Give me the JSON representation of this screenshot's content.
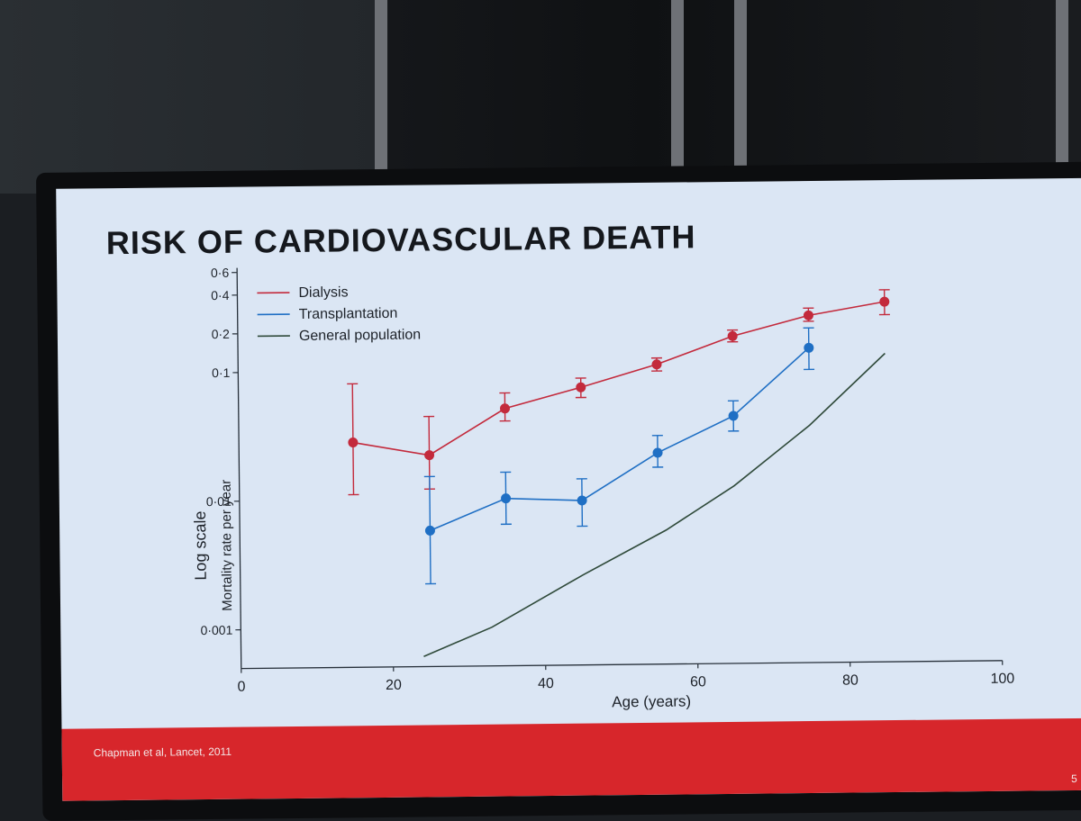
{
  "slide": {
    "title": "RISK OF CARDIOVASCULAR DEATH",
    "citation": "Chapman et al, Lancet, 2011",
    "page_number": "5"
  },
  "colors": {
    "dialysis": "#c32a3c",
    "transplantation": "#1f6fc4",
    "general_population": "#2f4a3a",
    "slide_bg": "#dbe6f4",
    "footer_bar": "#d7262b"
  },
  "chart_data": {
    "type": "line",
    "title": "",
    "ylabel_main": "Log scale",
    "ylabel_sub": "Mortality rate per year",
    "xlabel": "Age (years)",
    "xlim": [
      0,
      100
    ],
    "ylim": [
      0.0005,
      0.6
    ],
    "y_scale": "log",
    "x_ticks": [
      {
        "value": 0,
        "label": "0"
      },
      {
        "value": 20,
        "label": "20"
      },
      {
        "value": 40,
        "label": "40"
      },
      {
        "value": 60,
        "label": "60"
      },
      {
        "value": 80,
        "label": "80"
      },
      {
        "value": 100,
        "label": "100"
      }
    ],
    "y_ticks": [
      {
        "value": 0.001,
        "label": "0·001"
      },
      {
        "value": 0.01,
        "label": "0·01"
      },
      {
        "value": 0.1,
        "label": "0·1"
      },
      {
        "value": 0.2,
        "label": "0·2"
      },
      {
        "value": 0.4,
        "label": "0·4"
      },
      {
        "value": 0.6,
        "label": "0·6"
      }
    ],
    "legend_position": "top-left",
    "series": [
      {
        "name": "Dialysis",
        "color": "#c32a3c",
        "markers": true,
        "points": [
          {
            "x": 15,
            "y": 0.028,
            "low": 0.011,
            "high": 0.08
          },
          {
            "x": 25,
            "y": 0.022,
            "low": 0.012,
            "high": 0.044
          },
          {
            "x": 35,
            "y": 0.05,
            "low": 0.04,
            "high": 0.066
          },
          {
            "x": 45,
            "y": 0.072,
            "low": 0.06,
            "high": 0.085
          },
          {
            "x": 55,
            "y": 0.107,
            "low": 0.095,
            "high": 0.12
          },
          {
            "x": 65,
            "y": 0.175,
            "low": 0.158,
            "high": 0.195
          },
          {
            "x": 75,
            "y": 0.25,
            "low": 0.225,
            "high": 0.285
          },
          {
            "x": 85,
            "y": 0.315,
            "low": 0.25,
            "high": 0.39
          }
        ]
      },
      {
        "name": "Transplantation",
        "color": "#1f6fc4",
        "markers": true,
        "points": [
          {
            "x": 25,
            "y": 0.0057,
            "low": 0.0022,
            "high": 0.015
          },
          {
            "x": 35,
            "y": 0.01,
            "low": 0.0063,
            "high": 0.016
          },
          {
            "x": 45,
            "y": 0.0095,
            "low": 0.006,
            "high": 0.014
          },
          {
            "x": 55,
            "y": 0.022,
            "low": 0.017,
            "high": 0.03
          },
          {
            "x": 65,
            "y": 0.042,
            "low": 0.032,
            "high": 0.055
          },
          {
            "x": 75,
            "y": 0.14,
            "low": 0.095,
            "high": 0.2
          }
        ]
      },
      {
        "name": "General population",
        "color": "#2f4a3a",
        "markers": false,
        "points": [
          {
            "x": 24,
            "y": 0.0006
          },
          {
            "x": 33,
            "y": 0.001
          },
          {
            "x": 45,
            "y": 0.0025
          },
          {
            "x": 56,
            "y": 0.0055
          },
          {
            "x": 65,
            "y": 0.012
          },
          {
            "x": 75,
            "y": 0.035
          },
          {
            "x": 85,
            "y": 0.125
          }
        ]
      }
    ]
  }
}
